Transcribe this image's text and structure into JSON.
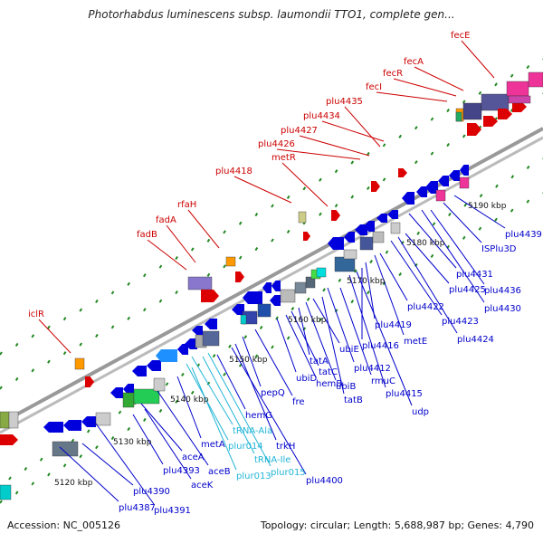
{
  "header": {
    "title": "Photorhabdus luminescens subsp. laumondii TTO1, complete gen..."
  },
  "footer": {
    "accession": "Accession: NC_005126",
    "summary": "Topology: circular; Length: 5,688,987 bp; Genes: 4,790"
  },
  "colors": {
    "upper_label": "#cc0000",
    "lower_label": "#0000cc",
    "rna_label": "#22b5d6",
    "axis": "#999999",
    "dots": "#228822"
  },
  "ticks": [
    "5120 kbp",
    "5130 kbp",
    "5140 kbp",
    "5150 kbp",
    "5160 kbp",
    "5170 kbp",
    "5180 kbp",
    "5190 kbp"
  ],
  "upper_labels": [
    "iclR",
    "fadB",
    "fadA",
    "rfaH",
    "plu4418",
    "metR",
    "plu4426",
    "plu4427",
    "plu4434",
    "plu4435",
    "fecI",
    "fecR",
    "fecA",
    "fecE"
  ],
  "lower_labels": [
    "plu4387",
    "plu4391",
    "plu4390",
    "aceK",
    "plu4393",
    "aceB",
    "aceA",
    "metA",
    "plur014",
    "tRNA-Ala",
    "plur013",
    "tRNA-Ile",
    "plur015",
    "hemG",
    "trkH",
    "plu4400",
    "pepQ",
    "fre",
    "ubiD",
    "hemB",
    "tatC",
    "tatA",
    "ubiB",
    "ubiE",
    "tatB",
    "plu4412",
    "rmuC",
    "plu4415",
    "udp",
    "plu4416",
    "metE",
    "plu4419",
    "plu4422",
    "plu4423",
    "plu4424",
    "plu4425",
    "plu4431",
    "plu4430",
    "plu4436",
    "ISPlu3D",
    "plu4439"
  ],
  "rna_labels": [
    "plur014",
    "tRNA-Ala",
    "plur013",
    "tRNA-Ile",
    "plur015"
  ]
}
